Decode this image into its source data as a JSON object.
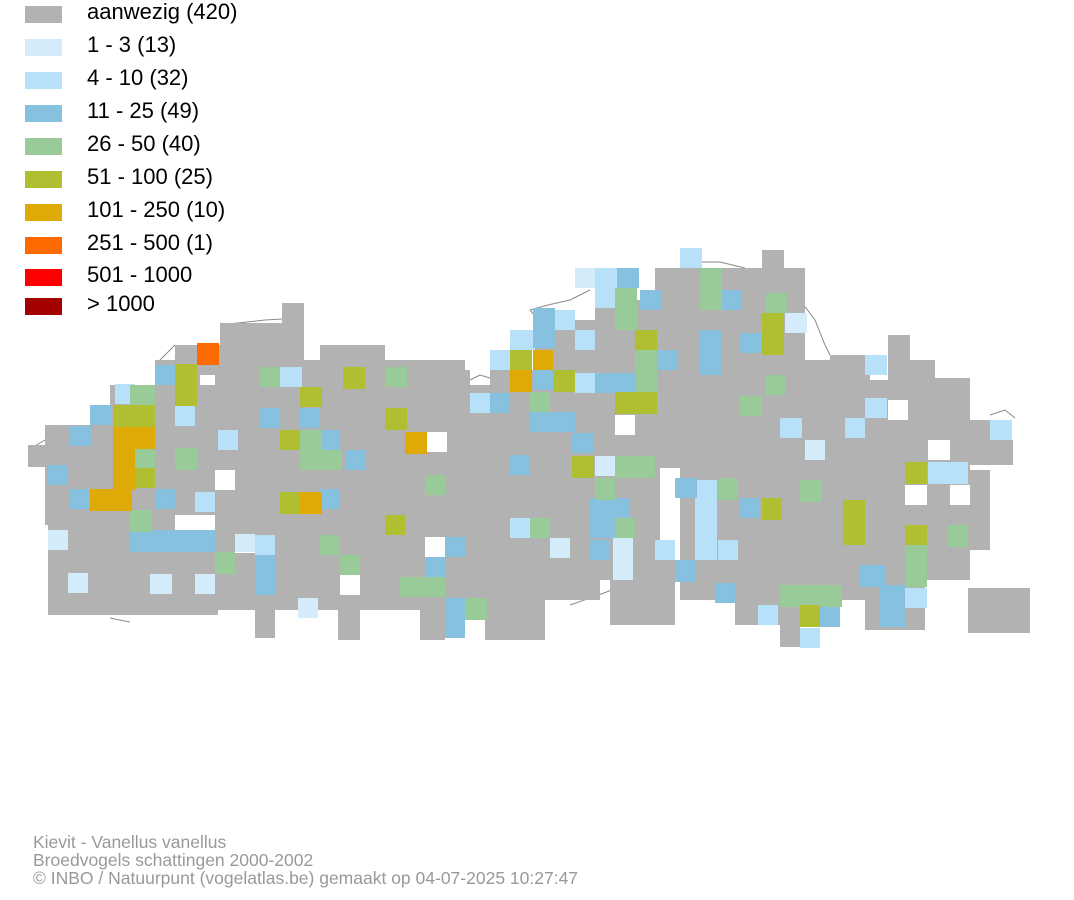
{
  "legend": {
    "items": [
      {
        "label": "aanwezig (420)",
        "color": "#b2b2b2"
      },
      {
        "label": "1 - 3 (13)",
        "color": "#d4ecfa"
      },
      {
        "label": "4 - 10 (32)",
        "color": "#b6e1f8"
      },
      {
        "label": "11 - 25 (49)",
        "color": "#86c1e0"
      },
      {
        "label": "26 - 50 (40)",
        "color": "#98cb98"
      },
      {
        "label": "51 - 100 (25)",
        "color": "#b0bf32"
      },
      {
        "label": "101 - 250 (10)",
        "color": "#e0aa06"
      },
      {
        "label": "251 - 500 (1)",
        "color": "#ff6a00"
      },
      {
        "label": "501 - 1000",
        "color": "#ff0000"
      },
      {
        "label": "> 1000",
        "color": "#a50000"
      }
    ]
  },
  "credits": {
    "species": "Kievit - Vanellus vanellus",
    "dataset": "Broedvogels schattingen 2000-2002",
    "copyright": "© INBO / Natuurpunt (vogelatlas.be) gemaakt op 04-07-2025 10:27:47"
  }
}
